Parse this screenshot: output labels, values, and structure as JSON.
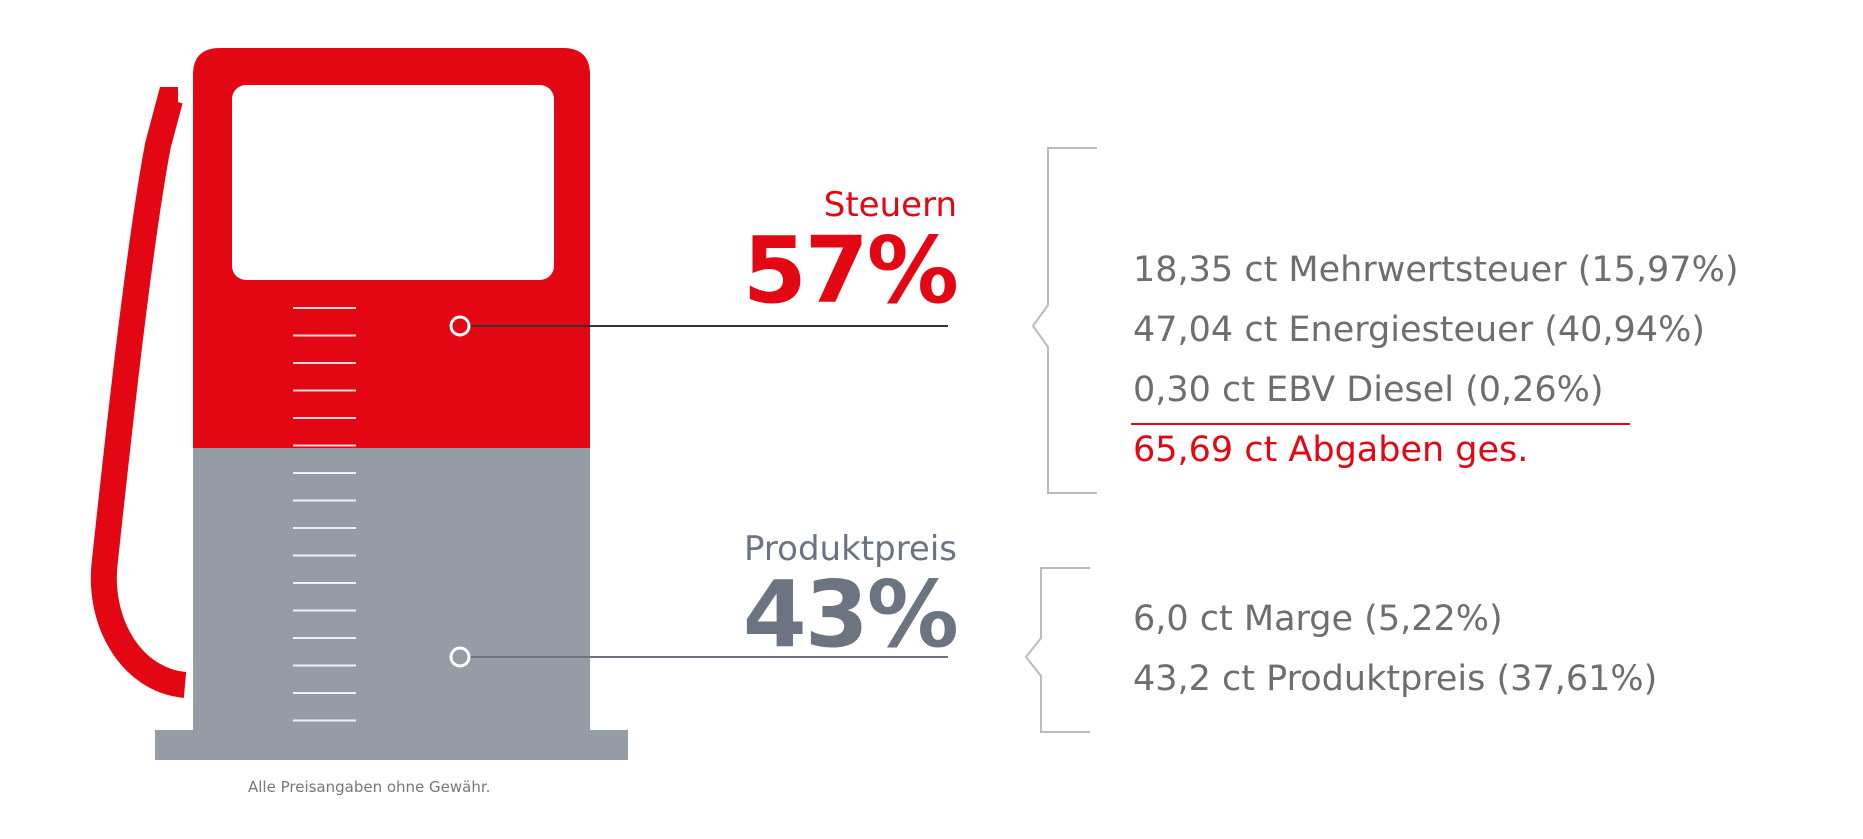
{
  "colors": {
    "red": "#e30613",
    "grey": "#969ca6",
    "grey_text": "#6b7480",
    "detail_text": "#6e6e6e",
    "bracket": "#bbbbbb"
  },
  "segments": [
    {
      "name": "Steuern",
      "percent_label": "57%",
      "percent": 57,
      "color_key": "red",
      "details": [
        "18,35 ct Mehrwertsteuer (15,97%)",
        "47,04 ct Energiesteuer (40,94%)",
        "0,30 ct EBV Diesel (0,26%)"
      ],
      "total": "65,69 ct Abgaben ges."
    },
    {
      "name": "Produktpreis",
      "percent_label": "43%",
      "percent": 43,
      "color_key": "grey",
      "details": [
        "6,0 ct Marge (5,22%)",
        "43,2 ct Produktpreis (37,61%)"
      ]
    }
  ],
  "footnote": "Alle Preisangaben ohne Gewähr."
}
